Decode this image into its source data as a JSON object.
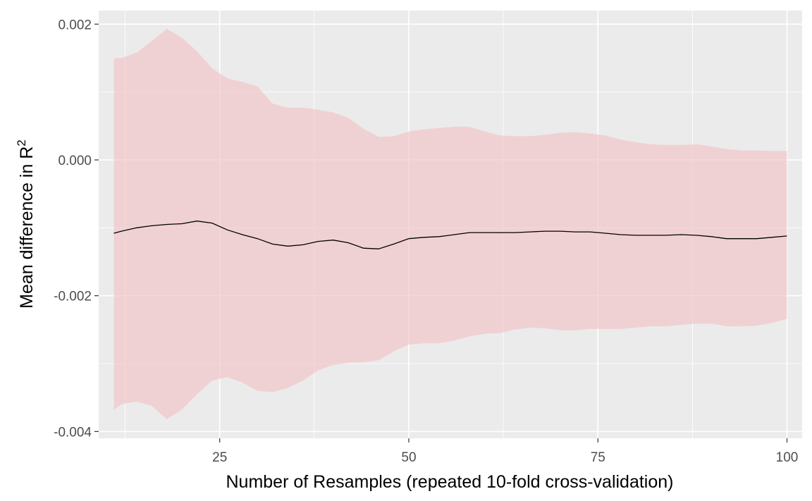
{
  "chart_data": {
    "type": "line",
    "title": "",
    "xlabel": "Number of Resamples (repeated 10-fold cross-validation)",
    "ylabel": "Mean difference in R",
    "ylabel_superscript": "2",
    "xlim": [
      9,
      102
    ],
    "ylim": [
      -0.0041,
      0.0022
    ],
    "x_ticks": [
      25,
      50,
      75,
      100
    ],
    "x_tick_labels": [
      "25",
      "50",
      "75",
      "100"
    ],
    "y_ticks": [
      -0.004,
      -0.002,
      0.0,
      0.002
    ],
    "y_tick_labels": [
      "-0.004",
      "-0.002",
      "0.000",
      "0.002"
    ],
    "grid": true,
    "colors": {
      "panel_background": "#ebebeb",
      "grid_major": "#ffffff",
      "ribbon_fill": "#f2c6c9",
      "ribbon_opacity": 0.7,
      "line": "#000000"
    },
    "series": [
      {
        "x": [
          11,
          12,
          14,
          16,
          18,
          20,
          22,
          24,
          26,
          28,
          30,
          32,
          34,
          36,
          38,
          40,
          42,
          44,
          46,
          48,
          50,
          52,
          54,
          56,
          58,
          60,
          62,
          64,
          66,
          68,
          70,
          72,
          74,
          76,
          78,
          80,
          82,
          84,
          86,
          88,
          90,
          92,
          94,
          96,
          98,
          100
        ],
        "y": [
          -0.00108,
          -0.00105,
          -0.001,
          -0.00097,
          -0.00095,
          -0.00094,
          -0.0009,
          -0.00093,
          -0.00103,
          -0.0011,
          -0.00116,
          -0.00124,
          -0.00127,
          -0.00125,
          -0.0012,
          -0.00118,
          -0.00122,
          -0.0013,
          -0.00131,
          -0.00124,
          -0.00116,
          -0.00114,
          -0.00113,
          -0.0011,
          -0.00107,
          -0.00107,
          -0.00107,
          -0.00107,
          -0.00106,
          -0.00105,
          -0.00105,
          -0.00106,
          -0.00106,
          -0.00108,
          -0.0011,
          -0.00111,
          -0.00111,
          -0.00111,
          -0.0011,
          -0.00111,
          -0.00113,
          -0.00116,
          -0.00116,
          -0.00116,
          -0.00114,
          -0.00112
        ],
        "lower": [
          -0.00368,
          -0.0036,
          -0.00356,
          -0.00362,
          -0.00382,
          -0.00368,
          -0.00345,
          -0.00325,
          -0.0032,
          -0.00328,
          -0.0034,
          -0.00342,
          -0.00336,
          -0.00325,
          -0.0031,
          -0.00302,
          -0.00299,
          -0.00298,
          -0.00295,
          -0.00282,
          -0.00272,
          -0.0027,
          -0.0027,
          -0.00266,
          -0.0026,
          -0.00256,
          -0.00255,
          -0.0025,
          -0.00247,
          -0.00248,
          -0.00251,
          -0.00251,
          -0.00249,
          -0.00249,
          -0.00249,
          -0.00247,
          -0.00245,
          -0.00245,
          -0.00243,
          -0.00241,
          -0.00241,
          -0.00245,
          -0.00245,
          -0.00244,
          -0.0024,
          -0.00234
        ],
        "upper": [
          0.0015,
          0.0015,
          0.00158,
          0.00175,
          0.00193,
          0.0018,
          0.0016,
          0.00135,
          0.0012,
          0.00115,
          0.00108,
          0.00083,
          0.00077,
          0.00077,
          0.00074,
          0.0007,
          0.00062,
          0.00046,
          0.00034,
          0.00035,
          0.00042,
          0.00045,
          0.00047,
          0.00049,
          0.00049,
          0.00042,
          0.00036,
          0.00035,
          0.00035,
          0.00037,
          0.0004,
          0.00041,
          0.00039,
          0.00036,
          0.0003,
          0.00026,
          0.00023,
          0.00022,
          0.00022,
          0.00023,
          0.0002,
          0.00016,
          0.00014,
          0.00014,
          0.00013,
          0.00013
        ]
      }
    ]
  }
}
